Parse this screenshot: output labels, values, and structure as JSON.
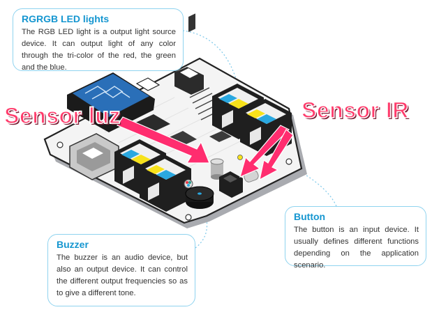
{
  "callouts": {
    "rgb": {
      "title": "RGRGB LED lights",
      "text": "The RGB LED light is a output light source device. It can output light of any color through the tri-color of the red, the green and the blue."
    },
    "button": {
      "title": "Button",
      "text": "The button is an input device. It usually defines different functions depending on the application scenario."
    },
    "buzzer": {
      "title": "Buzzer",
      "text": "The buzzer is an audio device, but also an output device. It can control the different output frequencies so as to give a different tone."
    }
  },
  "overlay_labels": {
    "light_sensor": "Sensor luz",
    "ir_sensor": "Sensor IR"
  },
  "colors": {
    "callout_title": "#1596d0",
    "callout_border": "#8fd3ef",
    "overlay_label": "#ff3b6b",
    "arrow": "#ff2d6f",
    "port_yellow": "#f7e21b",
    "port_blue": "#2aa8e0"
  }
}
